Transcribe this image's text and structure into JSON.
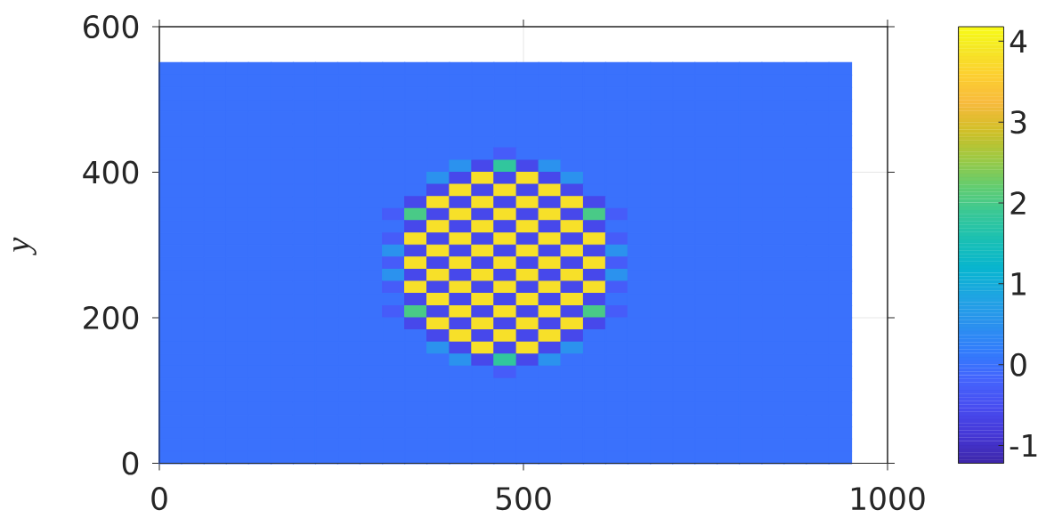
{
  "chart_data": {
    "type": "heatmap",
    "ylabel": "y",
    "x": [
      15,
      46,
      77,
      107,
      138,
      169,
      199,
      230,
      260,
      291,
      322,
      352,
      383,
      414,
      444,
      475,
      506,
      536,
      567,
      598,
      628,
      659,
      690,
      720,
      751,
      781,
      812,
      843,
      873,
      904,
      935
    ],
    "y": [
      542,
      525,
      508,
      492,
      475,
      458,
      442,
      425,
      408,
      392,
      375,
      358,
      342,
      325,
      308,
      292,
      275,
      258,
      242,
      225,
      208,
      192,
      175,
      158,
      142,
      125,
      108,
      92,
      75,
      58,
      42,
      25,
      8
    ],
    "cells": [
      [
        0,
        0,
        0,
        0,
        0,
        0,
        0,
        0,
        0,
        0,
        0,
        0,
        0,
        0,
        0,
        0,
        0,
        0,
        0,
        0,
        0,
        0,
        0,
        0,
        0,
        0,
        0,
        0,
        0,
        0,
        0
      ],
      [
        0,
        0,
        0,
        0,
        0,
        0,
        0,
        0,
        0,
        0,
        0,
        0,
        0,
        0,
        0,
        0,
        0,
        0,
        0,
        0,
        0,
        0,
        0,
        0,
        0,
        0,
        0,
        0,
        0,
        0,
        0
      ],
      [
        0,
        0,
        0,
        0,
        0,
        0,
        0,
        0,
        0,
        0,
        0,
        0,
        0,
        0,
        0,
        0,
        0,
        0,
        0,
        0,
        0,
        0,
        0,
        0,
        0,
        0,
        0,
        0,
        0,
        0,
        0
      ],
      [
        0,
        0,
        0,
        0,
        0,
        0,
        0,
        0,
        0,
        0,
        0,
        0,
        0,
        0,
        0,
        0,
        0,
        0,
        0,
        0,
        0,
        0,
        0,
        0,
        0,
        0,
        0,
        0,
        0,
        0,
        0
      ],
      [
        0,
        0,
        0,
        0,
        0,
        0,
        0,
        0,
        0,
        0,
        0,
        0,
        0,
        0,
        0,
        0,
        0,
        0,
        0,
        0,
        0,
        0,
        0,
        0,
        0,
        0,
        0,
        0,
        0,
        0,
        0
      ],
      [
        0,
        0,
        0,
        0,
        0,
        0,
        0,
        0,
        0,
        0,
        0,
        0,
        0,
        0,
        0,
        0,
        0,
        0,
        0,
        0,
        0,
        0,
        0,
        0,
        0,
        0,
        0,
        0,
        0,
        0,
        0
      ],
      [
        0,
        0,
        0,
        0,
        0,
        0,
        0,
        0,
        0,
        0,
        0,
        0,
        0,
        0,
        0,
        0,
        0,
        0,
        0,
        0,
        0,
        0,
        0,
        0,
        0,
        0,
        0,
        0,
        0,
        0,
        0
      ],
      [
        0,
        0,
        0,
        0,
        0,
        0,
        0,
        0,
        0,
        0,
        0,
        0,
        0,
        0,
        0,
        -0.3,
        0,
        0,
        0,
        0,
        0,
        0,
        0,
        0,
        0,
        0,
        0,
        0,
        0,
        0,
        0
      ],
      [
        0,
        0,
        0,
        0,
        0,
        0,
        0,
        0,
        0,
        0,
        0,
        0,
        0,
        0.5,
        -0.6,
        1.8,
        -0.6,
        0.5,
        0,
        0,
        0,
        0,
        0,
        0,
        0,
        0,
        0,
        0,
        0,
        0,
        0
      ],
      [
        0,
        0,
        0,
        0,
        0,
        0,
        0,
        0,
        0,
        0,
        0,
        0,
        0.5,
        -0.6,
        3.8,
        -0.6,
        3.8,
        -0.6,
        0.5,
        0,
        0,
        0,
        0,
        0,
        0,
        0,
        0,
        0,
        0,
        0,
        0
      ],
      [
        0,
        0,
        0,
        0,
        0,
        0,
        0,
        0,
        0,
        0,
        0,
        0,
        -0.6,
        3.8,
        -0.6,
        3.8,
        -0.6,
        3.8,
        -0.6,
        0,
        0,
        0,
        0,
        0,
        0,
        0,
        0,
        0,
        0,
        0,
        0
      ],
      [
        0,
        0,
        0,
        0,
        0,
        0,
        0,
        0,
        0,
        0,
        0,
        -0.6,
        3.8,
        -0.6,
        3.8,
        -0.6,
        3.8,
        -0.6,
        3.8,
        -0.6,
        0,
        0,
        0,
        0,
        0,
        0,
        0,
        0,
        0,
        0,
        0
      ],
      [
        0,
        0,
        0,
        0,
        0,
        0,
        0,
        0,
        0,
        0,
        -0.3,
        2,
        -0.6,
        3.8,
        -0.6,
        3.8,
        -0.6,
        3.8,
        -0.6,
        2,
        -0.3,
        0,
        0,
        0,
        0,
        0,
        0,
        0,
        0,
        0,
        0
      ],
      [
        0,
        0,
        0,
        0,
        0,
        0,
        0,
        0,
        0,
        0,
        0,
        -0.6,
        3.8,
        -0.6,
        3.8,
        -0.6,
        3.8,
        -0.6,
        3.8,
        -0.6,
        0,
        0,
        0,
        0,
        0,
        0,
        0,
        0,
        0,
        0,
        0
      ],
      [
        0,
        0,
        0,
        0,
        0,
        0,
        0,
        0,
        0,
        0,
        -0.3,
        3.8,
        -0.6,
        3.8,
        -0.6,
        3.8,
        -0.6,
        3.8,
        -0.6,
        3.8,
        -0.3,
        0,
        0,
        0,
        0,
        0,
        0,
        0,
        0,
        0,
        0
      ],
      [
        0,
        0,
        0,
        0,
        0,
        0,
        0,
        0,
        0,
        0,
        0.5,
        -0.6,
        3.8,
        -0.6,
        3.8,
        -0.6,
        3.8,
        -0.6,
        3.8,
        -0.6,
        0.5,
        0,
        0,
        0,
        0,
        0,
        0,
        0,
        0,
        0,
        0
      ],
      [
        0,
        0,
        0,
        0,
        0,
        0,
        0,
        0,
        0,
        0,
        -0.3,
        3.8,
        -0.6,
        3.8,
        -0.6,
        3.8,
        -0.6,
        3.8,
        -0.6,
        3.8,
        -0.3,
        0,
        0,
        0,
        0,
        0,
        0,
        0,
        0,
        0,
        0
      ],
      [
        0,
        0,
        0,
        0,
        0,
        0,
        0,
        0,
        0,
        0,
        0.5,
        -0.6,
        3.8,
        -0.6,
        3.8,
        -0.6,
        3.8,
        -0.6,
        3.8,
        -0.6,
        0.5,
        0,
        0,
        0,
        0,
        0,
        0,
        0,
        0,
        0,
        0
      ],
      [
        0,
        0,
        0,
        0,
        0,
        0,
        0,
        0,
        0,
        0,
        -0.3,
        3.8,
        -0.6,
        3.8,
        -0.6,
        3.8,
        -0.6,
        3.8,
        -0.6,
        3.8,
        -0.3,
        0,
        0,
        0,
        0,
        0,
        0,
        0,
        0,
        0,
        0
      ],
      [
        0,
        0,
        0,
        0,
        0,
        0,
        0,
        0,
        0,
        0,
        0,
        -0.6,
        3.8,
        -0.6,
        3.8,
        -0.6,
        3.8,
        -0.6,
        3.8,
        -0.6,
        0,
        0,
        0,
        0,
        0,
        0,
        0,
        0,
        0,
        0,
        0
      ],
      [
        0,
        0,
        0,
        0,
        0,
        0,
        0,
        0,
        0,
        0,
        -0.3,
        2,
        -0.6,
        3.8,
        -0.6,
        3.8,
        -0.6,
        3.8,
        -0.6,
        2,
        -0.3,
        0,
        0,
        0,
        0,
        0,
        0,
        0,
        0,
        0,
        0
      ],
      [
        0,
        0,
        0,
        0,
        0,
        0,
        0,
        0,
        0,
        0,
        0,
        -0.6,
        3.8,
        -0.6,
        3.8,
        -0.6,
        3.8,
        -0.6,
        3.8,
        -0.6,
        0,
        0,
        0,
        0,
        0,
        0,
        0,
        0,
        0,
        0,
        0
      ],
      [
        0,
        0,
        0,
        0,
        0,
        0,
        0,
        0,
        0,
        0,
        0,
        0,
        -0.6,
        3.8,
        -0.6,
        3.8,
        -0.6,
        3.8,
        -0.6,
        0,
        0,
        0,
        0,
        0,
        0,
        0,
        0,
        0,
        0,
        0,
        0
      ],
      [
        0,
        0,
        0,
        0,
        0,
        0,
        0,
        0,
        0,
        0,
        0,
        0,
        0.5,
        -0.6,
        3.8,
        -0.6,
        3.8,
        -0.6,
        0.5,
        0,
        0,
        0,
        0,
        0,
        0,
        0,
        0,
        0,
        0,
        0,
        0
      ],
      [
        0,
        0,
        0,
        0,
        0,
        0,
        0,
        0,
        0,
        0,
        0,
        0,
        0,
        0.5,
        -0.6,
        1.8,
        -0.6,
        0.5,
        0,
        0,
        0,
        0,
        0,
        0,
        0,
        0,
        0,
        0,
        0,
        0,
        0
      ],
      [
        0,
        0,
        0,
        0,
        0,
        0,
        0,
        0,
        0,
        0,
        0,
        0,
        0,
        0,
        0,
        -0.3,
        0,
        0,
        0,
        0,
        0,
        0,
        0,
        0,
        0,
        0,
        0,
        0,
        0,
        0,
        0
      ],
      [
        0,
        0,
        0,
        0,
        0,
        0,
        0,
        0,
        0,
        0,
        0,
        0,
        0,
        0,
        0,
        0,
        0,
        0,
        0,
        0,
        0,
        0,
        0,
        0,
        0,
        0,
        0,
        0,
        0,
        0,
        0
      ],
      [
        0,
        0,
        0,
        0,
        0,
        0,
        0,
        0,
        0,
        0,
        0,
        0,
        0,
        0,
        0,
        0,
        0,
        0,
        0,
        0,
        0,
        0,
        0,
        0,
        0,
        0,
        0,
        0,
        0,
        0,
        0
      ],
      [
        0,
        0,
        0,
        0,
        0,
        0,
        0,
        0,
        0,
        0,
        0,
        0,
        0,
        0,
        0,
        0,
        0,
        0,
        0,
        0,
        0,
        0,
        0,
        0,
        0,
        0,
        0,
        0,
        0,
        0,
        0
      ],
      [
        0,
        0,
        0,
        0,
        0,
        0,
        0,
        0,
        0,
        0,
        0,
        0,
        0,
        0,
        0,
        0,
        0,
        0,
        0,
        0,
        0,
        0,
        0,
        0,
        0,
        0,
        0,
        0,
        0,
        0,
        0
      ],
      [
        0,
        0,
        0,
        0,
        0,
        0,
        0,
        0,
        0,
        0,
        0,
        0,
        0,
        0,
        0,
        0,
        0,
        0,
        0,
        0,
        0,
        0,
        0,
        0,
        0,
        0,
        0,
        0,
        0,
        0,
        0
      ],
      [
        0,
        0,
        0,
        0,
        0,
        0,
        0,
        0,
        0,
        0,
        0,
        0,
        0,
        0,
        0,
        0,
        0,
        0,
        0,
        0,
        0,
        0,
        0,
        0,
        0,
        0,
        0,
        0,
        0,
        0,
        0
      ],
      [
        0,
        0,
        0,
        0,
        0,
        0,
        0,
        0,
        0,
        0,
        0,
        0,
        0,
        0,
        0,
        0,
        0,
        0,
        0,
        0,
        0,
        0,
        0,
        0,
        0,
        0,
        0,
        0,
        0,
        0,
        0
      ]
    ],
    "clim": [
      -1.22,
      4.18
    ],
    "cticks": [
      -1,
      0,
      1,
      2,
      3,
      4
    ],
    "xlim": [
      0,
      1000
    ],
    "ylim": [
      0,
      600
    ],
    "xticks": [
      0,
      500,
      1000
    ],
    "yticks": [
      0,
      200,
      400,
      600
    ],
    "grid": true
  }
}
